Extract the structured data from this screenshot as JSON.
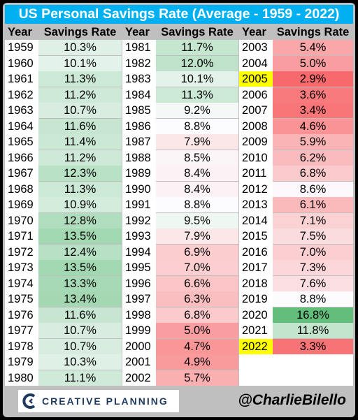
{
  "header": {
    "title": "US Personal Savings Rate (Average - 1959 - 2022)"
  },
  "chart_data": {
    "type": "table",
    "title": "US Personal Savings Rate (Average - 1959 - 2022)",
    "columns": [
      "Year",
      "Savings Rate"
    ],
    "highlighted_years": [
      "2005",
      "2022"
    ],
    "groups": [
      [
        {
          "year": "1959",
          "rate": 10.3,
          "label": "10.3%"
        },
        {
          "year": "1960",
          "rate": 10.1,
          "label": "10.1%"
        },
        {
          "year": "1961",
          "rate": 11.3,
          "label": "11.3%"
        },
        {
          "year": "1962",
          "rate": 11.2,
          "label": "11.2%"
        },
        {
          "year": "1963",
          "rate": 10.7,
          "label": "10.7%"
        },
        {
          "year": "1964",
          "rate": 11.6,
          "label": "11.6%"
        },
        {
          "year": "1965",
          "rate": 11.4,
          "label": "11.4%"
        },
        {
          "year": "1966",
          "rate": 11.2,
          "label": "11.2%"
        },
        {
          "year": "1967",
          "rate": 12.3,
          "label": "12.3%"
        },
        {
          "year": "1968",
          "rate": 11.3,
          "label": "11.3%"
        },
        {
          "year": "1969",
          "rate": 10.9,
          "label": "10.9%"
        },
        {
          "year": "1970",
          "rate": 12.8,
          "label": "12.8%"
        },
        {
          "year": "1971",
          "rate": 13.5,
          "label": "13.5%"
        },
        {
          "year": "1972",
          "rate": 12.4,
          "label": "12.4%"
        },
        {
          "year": "1973",
          "rate": 13.5,
          "label": "13.5%"
        },
        {
          "year": "1974",
          "rate": 13.3,
          "label": "13.3%"
        },
        {
          "year": "1975",
          "rate": 13.4,
          "label": "13.4%"
        },
        {
          "year": "1976",
          "rate": 11.6,
          "label": "11.6%"
        },
        {
          "year": "1977",
          "rate": 10.7,
          "label": "10.7%"
        },
        {
          "year": "1978",
          "rate": 10.7,
          "label": "10.7%"
        },
        {
          "year": "1979",
          "rate": 10.3,
          "label": "10.3%"
        },
        {
          "year": "1980",
          "rate": 11.1,
          "label": "11.1%"
        }
      ],
      [
        {
          "year": "1981",
          "rate": 11.7,
          "label": "11.7%"
        },
        {
          "year": "1982",
          "rate": 12.0,
          "label": "12.0%"
        },
        {
          "year": "1983",
          "rate": 10.1,
          "label": "10.1%"
        },
        {
          "year": "1984",
          "rate": 11.3,
          "label": "11.3%"
        },
        {
          "year": "1985",
          "rate": 9.2,
          "label": "9.2%"
        },
        {
          "year": "1986",
          "rate": 8.8,
          "label": "8.8%"
        },
        {
          "year": "1987",
          "rate": 7.9,
          "label": "7.9%"
        },
        {
          "year": "1988",
          "rate": 8.5,
          "label": "8.5%"
        },
        {
          "year": "1989",
          "rate": 8.4,
          "label": "8.4%"
        },
        {
          "year": "1990",
          "rate": 8.4,
          "label": "8.4%"
        },
        {
          "year": "1991",
          "rate": 8.8,
          "label": "8.8%"
        },
        {
          "year": "1992",
          "rate": 9.5,
          "label": "9.5%"
        },
        {
          "year": "1993",
          "rate": 7.9,
          "label": "7.9%"
        },
        {
          "year": "1994",
          "rate": 6.9,
          "label": "6.9%"
        },
        {
          "year": "1995",
          "rate": 7.0,
          "label": "7.0%"
        },
        {
          "year": "1996",
          "rate": 6.6,
          "label": "6.6%"
        },
        {
          "year": "1997",
          "rate": 6.3,
          "label": "6.3%"
        },
        {
          "year": "1998",
          "rate": 6.8,
          "label": "6.8%"
        },
        {
          "year": "1999",
          "rate": 5.0,
          "label": "5.0%"
        },
        {
          "year": "2000",
          "rate": 4.7,
          "label": "4.7%"
        },
        {
          "year": "2001",
          "rate": 4.9,
          "label": "4.9%"
        },
        {
          "year": "2002",
          "rate": 5.7,
          "label": "5.7%"
        }
      ],
      [
        {
          "year": "2003",
          "rate": 5.4,
          "label": "5.4%"
        },
        {
          "year": "2004",
          "rate": 5.0,
          "label": "5.0%"
        },
        {
          "year": "2005",
          "rate": 2.9,
          "label": "2.9%"
        },
        {
          "year": "2006",
          "rate": 3.6,
          "label": "3.6%"
        },
        {
          "year": "2007",
          "rate": 3.4,
          "label": "3.4%"
        },
        {
          "year": "2008",
          "rate": 4.6,
          "label": "4.6%"
        },
        {
          "year": "2009",
          "rate": 5.9,
          "label": "5.9%"
        },
        {
          "year": "2010",
          "rate": 6.2,
          "label": "6.2%"
        },
        {
          "year": "2011",
          "rate": 6.8,
          "label": "6.8%"
        },
        {
          "year": "2012",
          "rate": 8.6,
          "label": "8.6%"
        },
        {
          "year": "2013",
          "rate": 6.1,
          "label": "6.1%"
        },
        {
          "year": "2014",
          "rate": 7.1,
          "label": "7.1%"
        },
        {
          "year": "2015",
          "rate": 7.5,
          "label": "7.5%"
        },
        {
          "year": "2016",
          "rate": 7.0,
          "label": "7.0%"
        },
        {
          "year": "2017",
          "rate": 7.3,
          "label": "7.3%"
        },
        {
          "year": "2018",
          "rate": 7.6,
          "label": "7.6%"
        },
        {
          "year": "2019",
          "rate": 8.8,
          "label": "8.8%"
        },
        {
          "year": "2020",
          "rate": 16.8,
          "label": "16.8%"
        },
        {
          "year": "2021",
          "rate": 11.8,
          "label": "11.8%"
        },
        {
          "year": "2022",
          "rate": 3.3,
          "label": "3.3%"
        }
      ]
    ],
    "color_scale": {
      "low": "#f8696b",
      "mid": "#fcfcff",
      "high": "#63be7b",
      "highlight": "#ffff00"
    }
  },
  "footer": {
    "logo_text": "CREATIVE PLANNING",
    "logo_icon": "creative-planning-c-logo",
    "handle": "@CharlieBilello"
  }
}
